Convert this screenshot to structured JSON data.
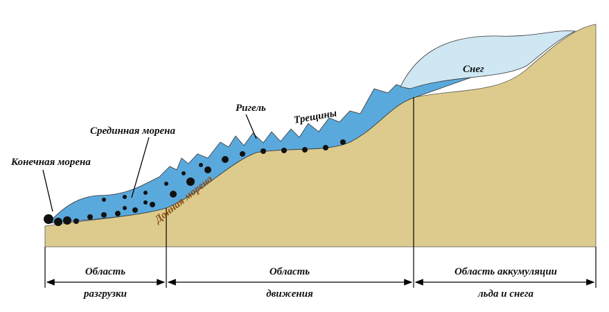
{
  "labels": {
    "snow": "Снег",
    "riegel": "Ригель",
    "crevasses": "Трещины",
    "medial_moraine": "Срединная морена",
    "terminal_moraine": "Конечная морена",
    "ground_moraine": "Донная морена"
  },
  "zones": [
    {
      "lines": [
        "Область",
        "разгрузки"
      ]
    },
    {
      "lines": [
        "Область",
        "движения"
      ]
    },
    {
      "lines": [
        "Область аккумуляции",
        "льда и снега"
      ]
    }
  ]
}
